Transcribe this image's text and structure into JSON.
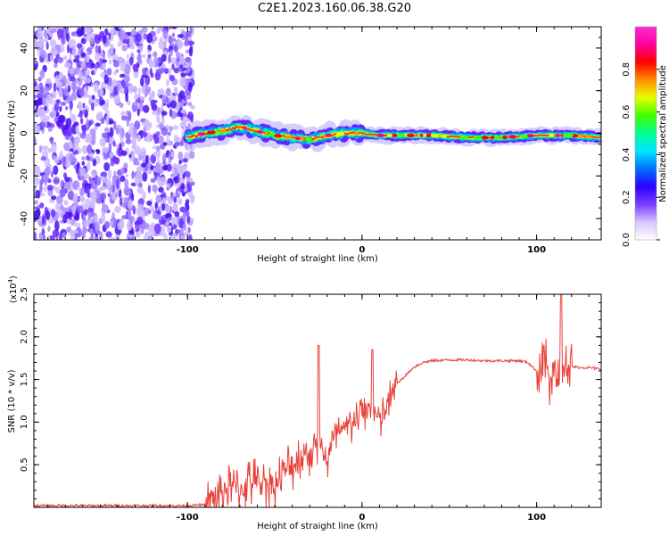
{
  "title": "C2E1.2023.160.06.38.G20",
  "chart_data": [
    {
      "type": "heatmap",
      "subtype": "spectrogram",
      "xlabel": "Height of straight line (km)",
      "ylabel": "Frequency (Hz)",
      "xlim": [
        -188,
        137
      ],
      "ylim": [
        -50,
        50
      ],
      "xticks": [
        -100,
        0,
        100
      ],
      "yticks": [
        -40,
        -20,
        0,
        20,
        40
      ],
      "colorbar": {
        "label": "Normalized spectral amplitude",
        "range": [
          0,
          1
        ],
        "ticks": [
          "0.0",
          "0.2",
          "0.4",
          "0.6",
          "0.8"
        ],
        "colormap": [
          "#ffffff",
          "#d6c7ff",
          "#7c3cff",
          "#2b00ff",
          "#0070ff",
          "#00e5ff",
          "#00ff90",
          "#40ff00",
          "#e8ff00",
          "#ff9000",
          "#ff0000",
          "#ff00a0",
          "#ff2ad0"
        ]
      },
      "regions": [
        {
          "x": [
            -188,
            -97
          ],
          "frequency": [
            -50,
            50
          ],
          "description": "broadband noise, amplitude 0.05-0.3"
        },
        {
          "x": [
            -97,
            137
          ],
          "description": "narrow signal trace near 0 Hz, amplitude up to ~0.9"
        }
      ],
      "trace": {
        "x": [
          -100,
          -90,
          -80,
          -70,
          -60,
          -50,
          -40,
          -30,
          -20,
          -10,
          0,
          10,
          20,
          40,
          60,
          80,
          100,
          110,
          120,
          137
        ],
        "frequency": [
          -2,
          0,
          1,
          3,
          1,
          -1,
          -2,
          -3,
          -1,
          0,
          0,
          -1,
          -1,
          -1,
          -2,
          -2,
          -1,
          -1,
          -1,
          -2
        ]
      }
    },
    {
      "type": "line",
      "xlabel": "Height of straight line (km)",
      "ylabel": "SNR (10 * v/v)",
      "yscale_label": "(x10",
      "yscale_exp": "4",
      "xlim": [
        -188,
        137
      ],
      "ylim": [
        0,
        2.5
      ],
      "xticks": [
        -100,
        0,
        100
      ],
      "yticks": [
        "0.5",
        "1.0",
        "1.5",
        "2.0",
        "2.5"
      ],
      "color": "#e8413a",
      "series": [
        {
          "x": [
            -188,
            -160,
            -130,
            -100,
            -90,
            -85,
            -80,
            -75,
            -70,
            -65,
            -60,
            -55,
            -50,
            -45,
            -40,
            -35,
            -30,
            -25,
            -20,
            -15,
            -10,
            -5,
            0,
            5,
            10,
            15,
            20,
            25,
            30,
            35,
            40,
            50,
            60,
            70,
            80,
            90,
            95,
            100,
            105,
            110,
            115,
            118,
            120,
            125,
            130,
            137
          ],
          "values": [
            0.02,
            0.02,
            0.02,
            0.02,
            0.03,
            0.08,
            0.2,
            0.25,
            0.2,
            0.3,
            0.28,
            0.3,
            0.25,
            0.4,
            0.5,
            0.6,
            0.65,
            0.75,
            0.55,
            0.85,
            0.9,
            1.0,
            1.1,
            1.2,
            1.0,
            1.2,
            1.45,
            1.55,
            1.65,
            1.7,
            1.72,
            1.73,
            1.73,
            1.72,
            1.72,
            1.72,
            1.7,
            1.6,
            1.65,
            1.5,
            1.65,
            1.68,
            1.65,
            1.64,
            1.64,
            1.62
          ]
        }
      ],
      "noise_amplitude": [
        {
          "x": [
            -90,
            -10
          ],
          "amplitude": 0.35
        },
        {
          "x": [
            -10,
            20
          ],
          "amplitude": 0.3
        },
        {
          "x": [
            100,
            120
          ],
          "amplitude": 0.45
        }
      ],
      "annotations": [
        {
          "x": -25,
          "value": 1.9
        },
        {
          "x": 6,
          "value": 1.85
        },
        {
          "x": 114,
          "value": 2.5
        }
      ]
    }
  ]
}
